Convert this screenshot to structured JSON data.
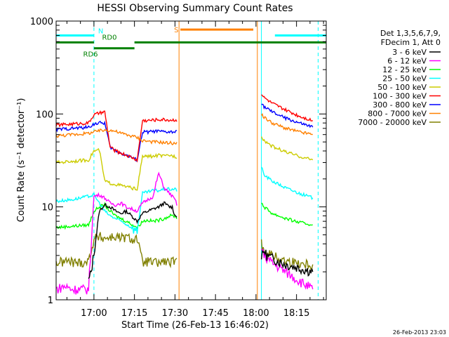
{
  "chart_data": {
    "type": "line",
    "title": "HESSI Observing Summary Count Rates",
    "xlabel": "Start Time (26-Feb-13 16:46:02)",
    "ylabel": "Count Rate (s⁻¹ detector⁻¹)",
    "yscale": "log",
    "ylim": [
      1,
      1000
    ],
    "xlim_minutes": [
      0,
      100
    ],
    "x_ticks": [
      {
        "label": "17:00",
        "min": 14
      },
      {
        "label": "17:15",
        "min": 29
      },
      {
        "label": "17:30",
        "min": 44
      },
      {
        "label": "17:45",
        "min": 59
      },
      {
        "label": "18:00",
        "min": 74
      },
      {
        "label": "18:15",
        "min": 89
      }
    ],
    "y_ticks": [
      {
        "label": "1",
        "value": 1
      },
      {
        "label": "10",
        "value": 10
      },
      {
        "label": "100",
        "value": 100
      },
      {
        "label": "1000",
        "value": 1000
      }
    ],
    "legend": {
      "header": [
        "Det 1,3,5,6,7,9,",
        "FDecim 1, Att 0"
      ],
      "placement": "right"
    },
    "series": [
      {
        "name": "3 - 6 keV",
        "color": "#000000",
        "x": [
          12,
          13,
          14,
          16,
          18,
          20,
          22,
          24,
          26,
          28,
          30,
          32,
          34,
          36,
          38,
          40,
          42,
          43,
          44,
          45,
          76,
          77,
          78,
          80,
          85,
          90,
          95
        ],
        "y": [
          1.6,
          2.0,
          3.2,
          9.0,
          10.5,
          10.0,
          9.0,
          8.5,
          9.0,
          8.0,
          7.0,
          8.5,
          9.0,
          9.5,
          10.0,
          11.0,
          10.0,
          10.0,
          8.0,
          8.0,
          2.8,
          3.4,
          3.0,
          2.8,
          2.4,
          2.2,
          2.0
        ]
      },
      {
        "name": "6 - 12 keV",
        "color": "#ff00ff",
        "x": [
          0,
          3,
          6,
          9,
          12,
          14,
          16,
          18,
          20,
          22,
          24,
          26,
          28,
          30,
          32,
          34,
          36,
          37,
          38,
          40,
          42,
          44,
          45,
          76,
          77,
          80,
          85,
          90,
          95
        ],
        "y": [
          1.3,
          1.4,
          1.3,
          1.3,
          1.3,
          13.0,
          13.5,
          12.5,
          11.0,
          10.5,
          11.0,
          10.0,
          9.5,
          9.0,
          11.0,
          12.0,
          13.0,
          18.0,
          23.0,
          16.0,
          14.0,
          12.0,
          10.0,
          3.5,
          3.0,
          2.5,
          2.0,
          1.6,
          1.3
        ]
      },
      {
        "name": "12 - 25 keV",
        "color": "#00ff00",
        "x": [
          0,
          6,
          12,
          14,
          16,
          18,
          20,
          22,
          24,
          26,
          28,
          30,
          32,
          34,
          36,
          38,
          40,
          42,
          44,
          45,
          76,
          77,
          80,
          85,
          90,
          95
        ],
        "y": [
          6.0,
          6.2,
          6.4,
          9.0,
          10.0,
          10.5,
          9.0,
          8.0,
          7.5,
          7.0,
          6.5,
          6.0,
          7.0,
          7.2,
          7.0,
          7.2,
          7.5,
          8.0,
          8.0,
          7.5,
          11.0,
          10.0,
          8.5,
          7.5,
          6.8,
          6.4
        ]
      },
      {
        "name": "25 - 50 keV",
        "color": "#00ffff",
        "x": [
          0,
          6,
          12,
          14,
          16,
          18,
          20,
          22,
          24,
          26,
          28,
          30,
          32,
          34,
          36,
          38,
          40,
          42,
          44,
          45,
          76,
          77,
          80,
          85,
          90,
          95
        ],
        "y": [
          11.5,
          12.0,
          13.0,
          13.5,
          11.0,
          9.0,
          8.0,
          7.5,
          7.0,
          6.5,
          6.0,
          5.5,
          14.0,
          14.5,
          15.0,
          15.0,
          15.5,
          15.5,
          15.5,
          15.0,
          27.0,
          22.0,
          19.0,
          16.0,
          14.0,
          12.5
        ]
      },
      {
        "name": "50 - 100 keV",
        "color": "#cccc00",
        "x": [
          0,
          6,
          12,
          14,
          16,
          18,
          20,
          22,
          24,
          26,
          28,
          30,
          32,
          34,
          36,
          38,
          40,
          42,
          44,
          45,
          76,
          77,
          80,
          85,
          90,
          95
        ],
        "y": [
          30,
          31,
          32,
          40,
          41,
          19.0,
          18.0,
          17.5,
          17.0,
          16.5,
          16.0,
          15.5,
          35,
          35,
          35,
          36,
          35,
          36,
          35,
          34,
          58,
          52,
          45,
          39,
          35,
          32
        ]
      },
      {
        "name": "100 - 300 keV",
        "color": "#ff0000",
        "x": [
          0,
          6,
          12,
          14,
          16,
          18,
          20,
          22,
          24,
          26,
          28,
          30,
          32,
          34,
          36,
          38,
          40,
          42,
          44,
          45,
          76,
          77,
          80,
          85,
          90,
          95
        ],
        "y": [
          76,
          78,
          80,
          98,
          102,
          105,
          44,
          40,
          38,
          36,
          34,
          32,
          85,
          85,
          86,
          87,
          87,
          86,
          86,
          86,
          165,
          150,
          130,
          110,
          95,
          85
        ]
      },
      {
        "name": "300 - 800 keV",
        "color": "#0000ff",
        "x": [
          0,
          6,
          12,
          14,
          16,
          18,
          20,
          22,
          24,
          26,
          28,
          30,
          32,
          34,
          36,
          38,
          40,
          42,
          44,
          45,
          76,
          77,
          80,
          85,
          90,
          95
        ],
        "y": [
          68,
          70,
          72,
          78,
          80,
          80,
          44,
          40,
          38,
          36,
          34,
          32,
          64,
          64,
          65,
          65,
          64,
          64,
          64,
          64,
          130,
          120,
          105,
          90,
          80,
          72
        ]
      },
      {
        "name": "800 - 7000 keV",
        "color": "#ff8000",
        "x": [
          0,
          6,
          12,
          14,
          16,
          18,
          20,
          22,
          24,
          26,
          28,
          30,
          32,
          34,
          36,
          38,
          40,
          42,
          44,
          45,
          76,
          77,
          80,
          85,
          90,
          95
        ],
        "y": [
          58,
          60,
          62,
          64,
          66,
          67,
          67,
          65,
          62,
          60,
          58,
          56,
          52,
          51,
          50,
          50,
          49,
          49,
          48,
          48,
          100,
          92,
          80,
          70,
          64,
          60
        ]
      },
      {
        "name": "7000 - 20000 keV",
        "color": "#808000",
        "x": [
          0,
          4,
          8,
          12,
          14,
          16,
          18,
          20,
          22,
          24,
          26,
          28,
          30,
          32,
          34,
          36,
          38,
          40,
          42,
          44,
          45,
          76,
          77,
          80,
          85,
          90,
          95
        ],
        "y": [
          2.5,
          2.6,
          2.5,
          2.6,
          4.5,
          4.8,
          4.6,
          4.7,
          4.8,
          4.6,
          4.7,
          4.5,
          4.6,
          2.5,
          2.6,
          2.5,
          2.5,
          2.6,
          2.5,
          2.6,
          2.5,
          4.0,
          3.5,
          3.0,
          2.6,
          2.5,
          2.4
        ]
      }
    ],
    "flag_bars": [
      {
        "label": "N",
        "color": "#00ffff",
        "value": 700,
        "segments": [
          [
            0,
            14
          ],
          [
            81,
            100
          ]
        ]
      },
      {
        "label": "S",
        "color": "#ff8000",
        "value": 810,
        "segments": [
          [
            46,
            73
          ]
        ]
      },
      {
        "label": "RD0",
        "color": "#008000",
        "value": 590,
        "segments": [
          [
            0,
            14
          ],
          [
            29,
            100
          ]
        ]
      },
      {
        "label": "RD6",
        "color": "#008000",
        "value": 510,
        "segments": [
          [
            14,
            29
          ]
        ]
      }
    ],
    "vlines": [
      {
        "min": 0,
        "color": "#00ffff",
        "style": "solid"
      },
      {
        "min": 14,
        "color": "#00ffff",
        "style": "dashed"
      },
      {
        "min": 45.5,
        "color": "#ff8000",
        "style": "solid"
      },
      {
        "min": 74.5,
        "color": "#ff8000",
        "style": "solid"
      },
      {
        "min": 76,
        "color": "#00ffff",
        "style": "solid"
      },
      {
        "min": 97,
        "color": "#00ffff",
        "style": "dashed"
      }
    ],
    "timestamp": "26-Feb-2013 23:03"
  }
}
